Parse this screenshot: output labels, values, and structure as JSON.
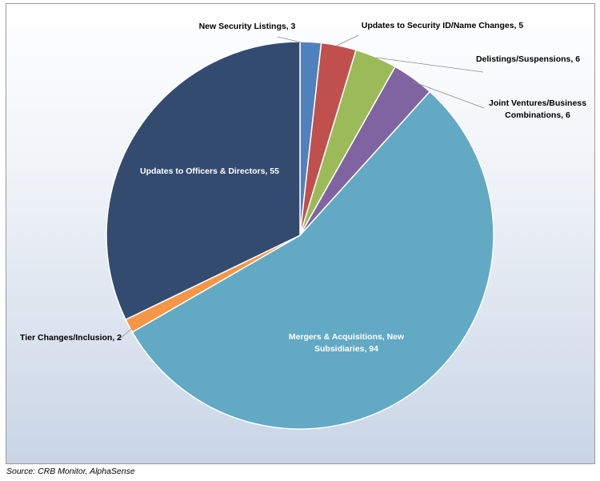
{
  "chart_data": {
    "type": "pie",
    "title": "",
    "slices": [
      {
        "label": "New Security Listings, 3",
        "name": "New Security Listings",
        "value": 3,
        "color": "#4f81bd"
      },
      {
        "label": "Updates to Security ID/Name Changes, 5",
        "name": "Updates to Security ID/Name Changes",
        "value": 5,
        "color": "#c0504d"
      },
      {
        "label": "Delistings/Suspensions, 6",
        "name": "Delistings/Suspensions",
        "value": 6,
        "color": "#9bbb59"
      },
      {
        "label": "Joint Ventures/Business Combinations, 6",
        "label_lines": [
          "Joint Ventures/Business",
          "Combinations, 6"
        ],
        "name": "Joint Ventures/Business Combinations",
        "value": 6,
        "color": "#8064a2"
      },
      {
        "label": "Mergers & Acquisitions, New Subsidiaries, 94",
        "label_lines": [
          "Mergers & Acquisitions, New",
          "Subsidiaries, 94"
        ],
        "name": "Mergers & Acquisitions, New Subsidiaries",
        "value": 94,
        "color": "#62a9c4"
      },
      {
        "label": "Tier Changes/Inclusion, 2",
        "name": "Tier Changes/Inclusion",
        "value": 2,
        "color": "#f79646"
      },
      {
        "label": "Updates to Officers & Directors, 55",
        "name": "Updates to Officers & Directors",
        "value": 55,
        "color": "#344b70"
      }
    ]
  },
  "source": "Source: CRB Monitor, AlphaSense"
}
